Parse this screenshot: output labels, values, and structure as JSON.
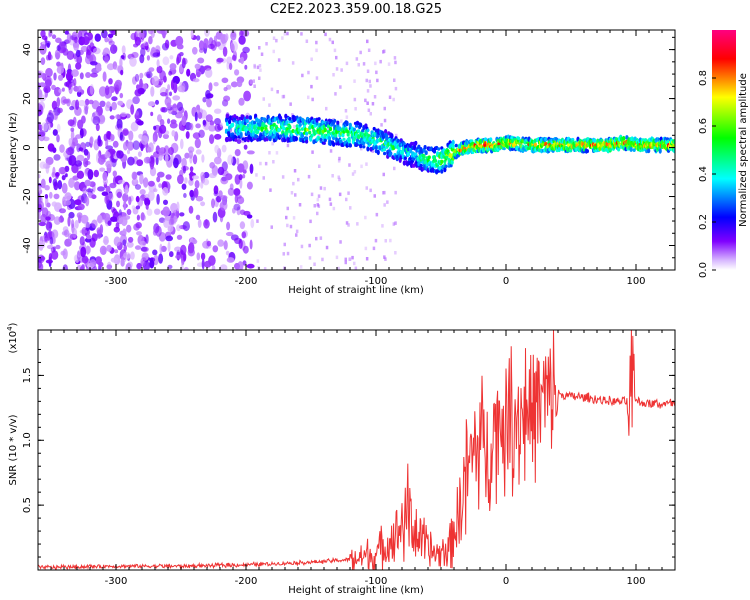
{
  "title": "C2E2.2023.359.00.18.G25",
  "chart_data": [
    {
      "type": "heatmap",
      "xlabel": "Height of straight line (km)",
      "ylabel": "Frequency (Hz)",
      "xlim": [
        -360,
        130
      ],
      "ylim": [
        -50,
        48
      ],
      "xticks": [
        -300,
        -200,
        -100,
        0,
        100
      ],
      "yticks": [
        -40,
        -20,
        0,
        20,
        40
      ],
      "colorbar": {
        "label": "Normalized spectral amplitude",
        "range": [
          0,
          1
        ],
        "ticks": [
          "0.0",
          "0.2",
          "0.4",
          "0.6",
          "0.8"
        ],
        "colors": [
          "#ffffff",
          "#7f00ff",
          "#0000ff",
          "#00ffff",
          "#00ff00",
          "#ffff00",
          "#ff0000",
          "#ff0080"
        ]
      },
      "ridge": {
        "x": [
          -215,
          -190,
          -170,
          -150,
          -130,
          -110,
          -100,
          -90,
          -80,
          -70,
          -60,
          -50,
          -40,
          -30,
          -20,
          -10,
          0,
          20,
          40,
          60,
          80,
          90,
          100,
          130
        ],
        "frequency": [
          8,
          8,
          8,
          7,
          6,
          5,
          3,
          1,
          -1,
          -3,
          -5,
          -5,
          -2,
          0,
          1,
          1,
          2,
          1,
          1,
          1,
          1,
          2,
          1,
          1
        ],
        "amplitude": [
          0.4,
          0.5,
          0.55,
          0.6,
          0.55,
          0.5,
          0.5,
          0.5,
          0.45,
          0.4,
          0.55,
          0.6,
          0.7,
          0.8,
          0.85,
          0.85,
          0.8,
          0.75,
          0.8,
          0.8,
          0.85,
          0.85,
          0.8,
          0.8
        ]
      }
    },
    {
      "type": "line",
      "xlabel": "Height of straight line (km)",
      "ylabel": "SNR (10 * v/v)",
      "y_multiplier": "(x10",
      "y_multiplier_exp": "4",
      "xlim": [
        -360,
        130
      ],
      "ylim": [
        0,
        1.85
      ],
      "xticks": [
        -300,
        -200,
        -100,
        0,
        100
      ],
      "yticks": [
        "0.5",
        "1.0",
        "1.5"
      ],
      "color": "#ee3333",
      "series": [
        {
          "x": [
            -360,
            -300,
            -250,
            -200,
            -150,
            -120,
            -100,
            -90,
            -80,
            -75,
            -70,
            -60,
            -50,
            -45,
            -40,
            -35,
            -30,
            -25,
            -20,
            -15,
            -10,
            -5,
            0,
            10,
            20,
            30,
            40,
            60,
            80,
            90,
            95,
            97,
            100,
            110,
            130
          ],
          "values": [
            0.02,
            0.03,
            0.03,
            0.04,
            0.06,
            0.08,
            0.12,
            0.22,
            0.35,
            0.45,
            0.3,
            0.15,
            0.12,
            0.15,
            0.3,
            0.5,
            0.8,
            0.9,
            1.0,
            0.95,
            1.05,
            1.15,
            1.15,
            1.2,
            1.25,
            1.32,
            1.35,
            1.33,
            1.3,
            1.3,
            1.3,
            1.45,
            1.3,
            1.28,
            1.28
          ]
        }
      ]
    }
  ]
}
